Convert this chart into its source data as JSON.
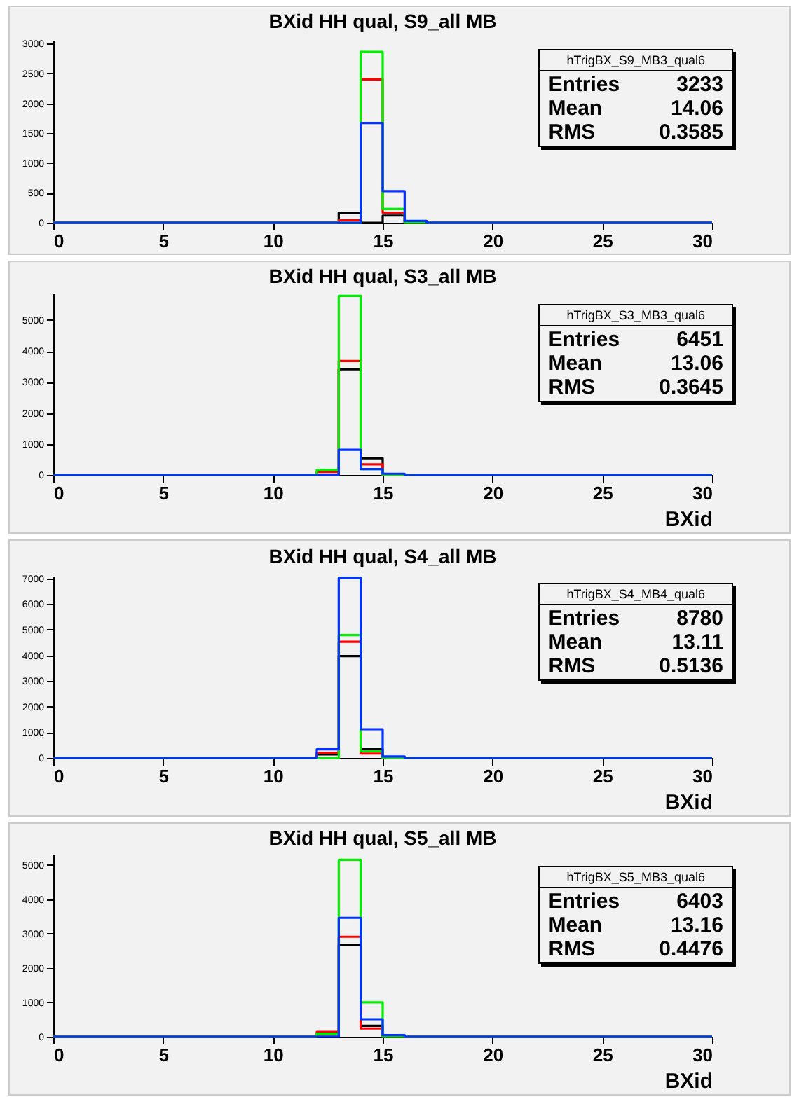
{
  "chart_data": [
    {
      "type": "histogram",
      "title": "BXid HH qual, S9_all MB",
      "bins": [
        0,
        1,
        2,
        3,
        4,
        5,
        6,
        7,
        8,
        9,
        10,
        11,
        12,
        13,
        14,
        15,
        16,
        17,
        18,
        19,
        20,
        21,
        22,
        23,
        24,
        25,
        26,
        27,
        28,
        29,
        30
      ],
      "xlim": [
        0,
        30
      ],
      "xticks": [
        0,
        5,
        10,
        15,
        20,
        25,
        30
      ],
      "ylim": [
        0,
        3050
      ],
      "yticks": [
        0,
        500,
        1000,
        1500,
        2000,
        2500,
        3000
      ],
      "annotations": [
        "hTrigBX_S9_MB3_qual6",
        "Entries",
        "3233",
        "Mean",
        "14.06",
        "RMS",
        "0.3585"
      ],
      "series": [
        {
          "color": "#000000",
          "values": [
            0,
            0,
            0,
            0,
            0,
            0,
            0,
            0,
            0,
            0,
            0,
            0,
            0,
            170,
            0,
            120,
            0,
            0,
            0,
            0,
            0,
            0,
            0,
            0,
            0,
            0,
            0,
            0,
            0,
            0
          ]
        },
        {
          "color": "#ff0000",
          "values": [
            0,
            0,
            0,
            0,
            0,
            0,
            0,
            0,
            0,
            0,
            0,
            0,
            0,
            40,
            2400,
            170,
            0,
            0,
            0,
            0,
            0,
            0,
            0,
            0,
            0,
            0,
            0,
            0,
            0,
            0
          ]
        },
        {
          "color": "#00ee00",
          "values": [
            0,
            0,
            0,
            0,
            0,
            0,
            0,
            0,
            0,
            0,
            0,
            0,
            0,
            0,
            2860,
            230,
            0,
            0,
            0,
            0,
            0,
            0,
            0,
            0,
            0,
            0,
            0,
            0,
            0,
            0
          ]
        },
        {
          "color": "#0033ff",
          "values": [
            0,
            0,
            0,
            0,
            0,
            0,
            0,
            0,
            0,
            0,
            0,
            0,
            0,
            0,
            1670,
            530,
            30,
            0,
            0,
            0,
            0,
            0,
            0,
            0,
            0,
            0,
            0,
            0,
            0,
            0
          ]
        }
      ]
    },
    {
      "type": "histogram",
      "title": "BXid HH qual, S3_all MB",
      "xlabel": "BXid",
      "bins": [
        0,
        1,
        2,
        3,
        4,
        5,
        6,
        7,
        8,
        9,
        10,
        11,
        12,
        13,
        14,
        15,
        16,
        17,
        18,
        19,
        20,
        21,
        22,
        23,
        24,
        25,
        26,
        27,
        28,
        29,
        30
      ],
      "xlim": [
        0,
        30
      ],
      "xticks": [
        0,
        5,
        10,
        15,
        20,
        25,
        30
      ],
      "ylim": [
        0,
        5880
      ],
      "yticks": [
        0,
        1000,
        2000,
        3000,
        4000,
        5000
      ],
      "annotations": [
        "hTrigBX_S3_MB3_qual6",
        "Entries",
        "6451",
        "Mean",
        "13.06",
        "RMS",
        "0.3645"
      ],
      "series": [
        {
          "color": "#000000",
          "values": [
            0,
            0,
            0,
            0,
            0,
            0,
            0,
            0,
            0,
            0,
            0,
            0,
            0,
            3410,
            540,
            0,
            0,
            0,
            0,
            0,
            0,
            0,
            0,
            0,
            0,
            0,
            0,
            0,
            0,
            0
          ]
        },
        {
          "color": "#ff0000",
          "values": [
            0,
            0,
            0,
            0,
            0,
            0,
            0,
            0,
            0,
            0,
            0,
            0,
            100,
            3680,
            340,
            0,
            0,
            0,
            0,
            0,
            0,
            0,
            0,
            0,
            0,
            0,
            0,
            0,
            0,
            0
          ]
        },
        {
          "color": "#00ee00",
          "values": [
            0,
            0,
            0,
            0,
            0,
            0,
            0,
            0,
            0,
            0,
            0,
            0,
            160,
            5780,
            190,
            0,
            0,
            0,
            0,
            0,
            0,
            0,
            0,
            0,
            0,
            0,
            0,
            0,
            0,
            0
          ]
        },
        {
          "color": "#0033ff",
          "values": [
            0,
            0,
            0,
            0,
            0,
            0,
            0,
            0,
            0,
            0,
            0,
            0,
            0,
            810,
            190,
            40,
            0,
            0,
            0,
            0,
            0,
            0,
            0,
            0,
            0,
            0,
            0,
            0,
            0,
            0
          ]
        }
      ]
    },
    {
      "type": "histogram",
      "title": "BXid HH qual, S4_all MB",
      "xlabel": "BXid",
      "bins": [
        0,
        1,
        2,
        3,
        4,
        5,
        6,
        7,
        8,
        9,
        10,
        11,
        12,
        13,
        14,
        15,
        16,
        17,
        18,
        19,
        20,
        21,
        22,
        23,
        24,
        25,
        26,
        27,
        28,
        29,
        30
      ],
      "xlim": [
        0,
        30
      ],
      "xticks": [
        0,
        5,
        10,
        15,
        20,
        25,
        30
      ],
      "ylim": [
        0,
        7100
      ],
      "yticks": [
        0,
        1000,
        2000,
        3000,
        4000,
        5000,
        6000,
        7000
      ],
      "annotations": [
        "hTrigBX_S4_MB4_qual6",
        "Entries",
        "8780",
        "Mean",
        "13.11",
        "RMS",
        "0.5136"
      ],
      "series": [
        {
          "color": "#000000",
          "values": [
            0,
            0,
            0,
            0,
            0,
            0,
            0,
            0,
            0,
            0,
            0,
            0,
            140,
            3970,
            340,
            0,
            0,
            0,
            0,
            0,
            0,
            0,
            0,
            0,
            0,
            0,
            0,
            0,
            0,
            0
          ]
        },
        {
          "color": "#ff0000",
          "values": [
            0,
            0,
            0,
            0,
            0,
            0,
            0,
            0,
            0,
            0,
            0,
            0,
            200,
            4530,
            170,
            0,
            0,
            0,
            0,
            0,
            0,
            0,
            0,
            0,
            0,
            0,
            0,
            0,
            0,
            0
          ]
        },
        {
          "color": "#00ee00",
          "values": [
            0,
            0,
            0,
            0,
            0,
            0,
            0,
            0,
            0,
            0,
            0,
            0,
            0,
            4790,
            260,
            0,
            0,
            0,
            0,
            0,
            0,
            0,
            0,
            0,
            0,
            0,
            0,
            0,
            0,
            0
          ]
        },
        {
          "color": "#0033ff",
          "values": [
            0,
            0,
            0,
            0,
            0,
            0,
            0,
            0,
            0,
            0,
            0,
            0,
            340,
            7020,
            1120,
            60,
            0,
            0,
            0,
            0,
            0,
            0,
            0,
            0,
            0,
            0,
            0,
            0,
            0,
            0
          ]
        }
      ]
    },
    {
      "type": "histogram",
      "title": "BXid HH qual, S5_all MB",
      "xlabel": "BXid",
      "bins": [
        0,
        1,
        2,
        3,
        4,
        5,
        6,
        7,
        8,
        9,
        10,
        11,
        12,
        13,
        14,
        15,
        16,
        17,
        18,
        19,
        20,
        21,
        22,
        23,
        24,
        25,
        26,
        27,
        28,
        29,
        30
      ],
      "xlim": [
        0,
        30
      ],
      "xticks": [
        0,
        5,
        10,
        15,
        20,
        25,
        30
      ],
      "ylim": [
        0,
        5300
      ],
      "yticks": [
        0,
        1000,
        2000,
        3000,
        4000,
        5000
      ],
      "annotations": [
        "hTrigBX_S5_MB3_qual6",
        "Entries",
        "6403",
        "Mean",
        "13.16",
        "RMS",
        "0.4476"
      ],
      "series": [
        {
          "color": "#000000",
          "values": [
            0,
            0,
            0,
            0,
            0,
            0,
            0,
            0,
            0,
            0,
            0,
            0,
            0,
            2670,
            320,
            0,
            0,
            0,
            0,
            0,
            0,
            0,
            0,
            0,
            0,
            0,
            0,
            0,
            0,
            0
          ]
        },
        {
          "color": "#ff0000",
          "values": [
            0,
            0,
            0,
            0,
            0,
            0,
            0,
            0,
            0,
            0,
            0,
            0,
            140,
            2910,
            240,
            0,
            0,
            0,
            0,
            0,
            0,
            0,
            0,
            0,
            0,
            0,
            0,
            0,
            0,
            0
          ]
        },
        {
          "color": "#00ee00",
          "values": [
            0,
            0,
            0,
            0,
            0,
            0,
            0,
            0,
            0,
            0,
            0,
            0,
            90,
            5150,
            1000,
            0,
            0,
            0,
            0,
            0,
            0,
            0,
            0,
            0,
            0,
            0,
            0,
            0,
            0,
            0
          ]
        },
        {
          "color": "#0033ff",
          "values": [
            0,
            0,
            0,
            0,
            0,
            0,
            0,
            0,
            0,
            0,
            0,
            0,
            0,
            3460,
            510,
            50,
            0,
            0,
            0,
            0,
            0,
            0,
            0,
            0,
            0,
            0,
            0,
            0,
            0,
            0
          ]
        }
      ]
    }
  ]
}
